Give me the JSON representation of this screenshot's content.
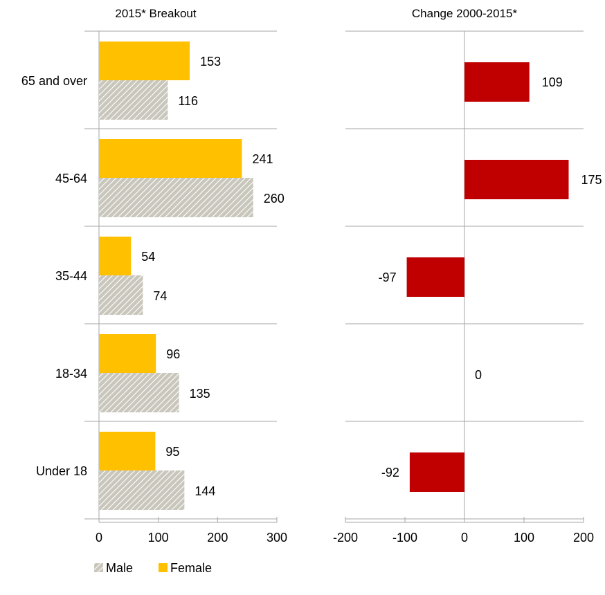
{
  "colors": {
    "female": "#FFC000",
    "male_base": "#C9C6BC",
    "male_stripe": "#ffffff",
    "change": "#C00000",
    "axis": "#A6A6A6"
  },
  "legend": {
    "male_label": "Male",
    "female_label": "Female"
  },
  "chart_data": [
    {
      "type": "bar",
      "orientation": "horizontal",
      "title": "2015* Breakout",
      "categories": [
        "65 and over",
        "45-64",
        "35-44",
        "18-34",
        "Under 18"
      ],
      "series": [
        {
          "name": "Female",
          "values": [
            153,
            241,
            54,
            96,
            95
          ]
        },
        {
          "name": "Male",
          "values": [
            116,
            260,
            74,
            135,
            144
          ]
        }
      ],
      "xlim": [
        0,
        300
      ],
      "xticks": [
        "0",
        "100",
        "200",
        "300"
      ],
      "legend_position": "bottom-left"
    },
    {
      "type": "bar",
      "orientation": "horizontal",
      "title": "Change 2000-2015*",
      "categories": [
        "65 and over",
        "45-64",
        "35-44",
        "18-34",
        "Under 18"
      ],
      "values": [
        109,
        175,
        -97,
        0,
        -92
      ],
      "xlim": [
        -200,
        200
      ],
      "xticks": [
        "-200",
        "-100",
        "0",
        "100",
        "200"
      ]
    }
  ]
}
